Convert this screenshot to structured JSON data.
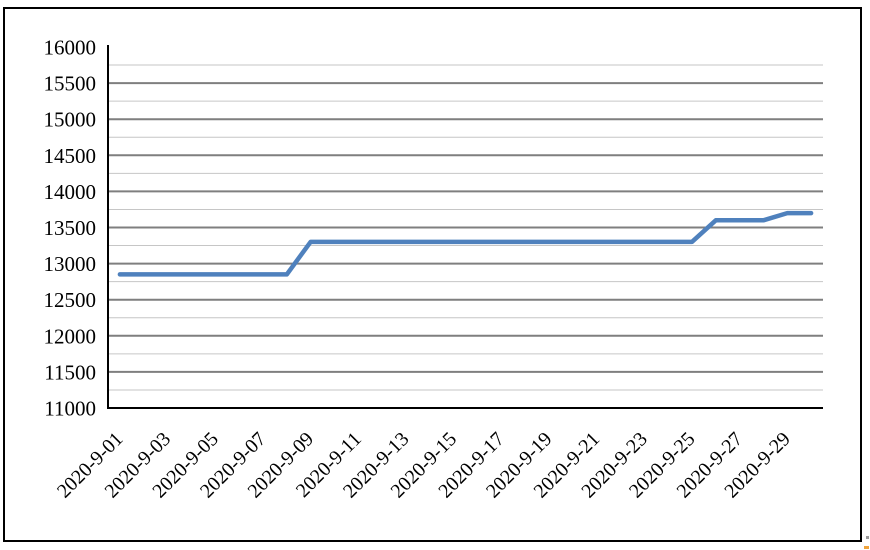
{
  "chart_data": {
    "type": "line",
    "title": "",
    "xlabel": "",
    "ylabel": "",
    "x": [
      "2020-9-01",
      "2020-9-02",
      "2020-9-03",
      "2020-9-04",
      "2020-9-05",
      "2020-9-06",
      "2020-9-07",
      "2020-9-08",
      "2020-9-09",
      "2020-9-10",
      "2020-9-11",
      "2020-9-12",
      "2020-9-13",
      "2020-9-14",
      "2020-9-15",
      "2020-9-16",
      "2020-9-17",
      "2020-9-18",
      "2020-9-19",
      "2020-9-20",
      "2020-9-21",
      "2020-9-22",
      "2020-9-23",
      "2020-9-24",
      "2020-9-25",
      "2020-9-26",
      "2020-9-27",
      "2020-9-28",
      "2020-9-29",
      "2020-9-30"
    ],
    "values": [
      12850,
      12850,
      12850,
      12850,
      12850,
      12850,
      12850,
      12850,
      13300,
      13300,
      13300,
      13300,
      13300,
      13300,
      13300,
      13300,
      13300,
      13300,
      13300,
      13300,
      13300,
      13300,
      13300,
      13300,
      13300,
      13600,
      13600,
      13600,
      13700,
      13700
    ],
    "x_tick_labels": [
      "2020-9-01",
      "2020-9-03",
      "2020-9-05",
      "2020-9-07",
      "2020-9-09",
      "2020-9-11",
      "2020-9-13",
      "2020-9-15",
      "2020-9-17",
      "2020-9-19",
      "2020-9-21",
      "2020-9-23",
      "2020-9-25",
      "2020-9-27",
      "2020-9-29"
    ],
    "y_tick_labels": [
      "16000",
      "15500",
      "15000",
      "14500",
      "14000",
      "13500",
      "13000",
      "12500",
      "12000",
      "11500",
      "11000"
    ],
    "ylim": [
      11000,
      16000
    ],
    "y_major_step": 500,
    "y_minor_step": 250,
    "grid": true,
    "legend_position": "none",
    "colors": {
      "line": "#4F81BD",
      "major_grid": "#7F7F7F",
      "minor_grid": "#C6C6C6",
      "axis": "#000000",
      "text": "#000000",
      "border": "#000000"
    }
  }
}
